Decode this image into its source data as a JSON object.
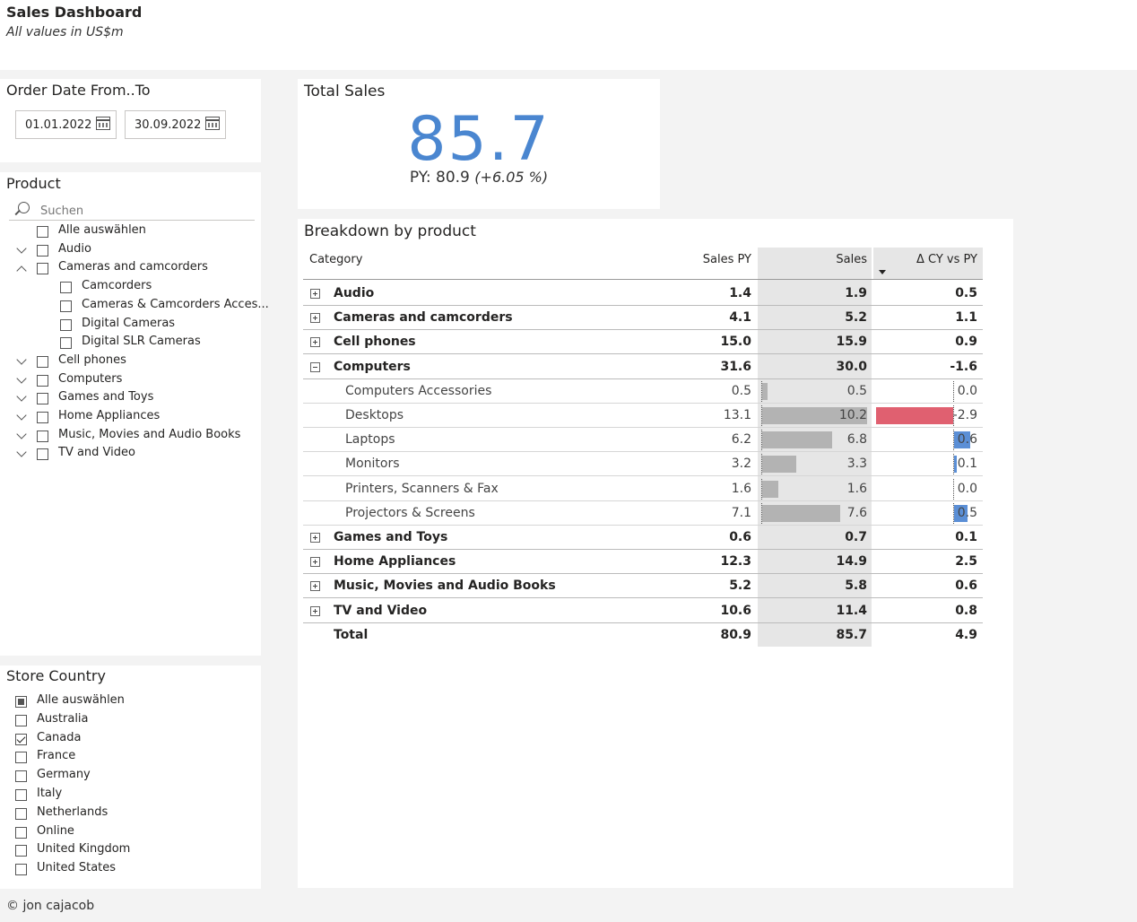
{
  "header": {
    "title": "Sales Dashboard",
    "subtitle": "All values in US$m"
  },
  "date_filter": {
    "title": "Order Date From..To",
    "from": "01.01.2022",
    "to": "30.09.2022"
  },
  "product_slicer": {
    "title": "Product",
    "search_placeholder": "Suchen",
    "items": [
      {
        "label": "Alle auswählen",
        "level": 0,
        "chevron": "none",
        "checked": false
      },
      {
        "label": "Audio",
        "level": 0,
        "chevron": "down",
        "checked": false
      },
      {
        "label": "Cameras and camcorders",
        "level": 0,
        "chevron": "up",
        "checked": false
      },
      {
        "label": "Camcorders",
        "level": 1,
        "chevron": "none",
        "checked": false
      },
      {
        "label": "Cameras & Camcorders Acces...",
        "level": 1,
        "chevron": "none",
        "checked": false
      },
      {
        "label": "Digital Cameras",
        "level": 1,
        "chevron": "none",
        "checked": false
      },
      {
        "label": "Digital SLR Cameras",
        "level": 1,
        "chevron": "none",
        "checked": false
      },
      {
        "label": "Cell phones",
        "level": 0,
        "chevron": "down",
        "checked": false
      },
      {
        "label": "Computers",
        "level": 0,
        "chevron": "down",
        "checked": false
      },
      {
        "label": "Games and Toys",
        "level": 0,
        "chevron": "down",
        "checked": false
      },
      {
        "label": "Home Appliances",
        "level": 0,
        "chevron": "down",
        "checked": false
      },
      {
        "label": "Music, Movies and Audio Books",
        "level": 0,
        "chevron": "down",
        "checked": false
      },
      {
        "label": "TV and Video",
        "level": 0,
        "chevron": "down",
        "checked": false
      }
    ]
  },
  "country_slicer": {
    "title": "Store Country",
    "items": [
      {
        "label": "Alle auswählen",
        "state": "partial"
      },
      {
        "label": "Australia",
        "state": "unchecked"
      },
      {
        "label": "Canada",
        "state": "checked"
      },
      {
        "label": "France",
        "state": "unchecked"
      },
      {
        "label": "Germany",
        "state": "unchecked"
      },
      {
        "label": "Italy",
        "state": "unchecked"
      },
      {
        "label": "Netherlands",
        "state": "unchecked"
      },
      {
        "label": "Online",
        "state": "unchecked"
      },
      {
        "label": "United Kingdom",
        "state": "unchecked"
      },
      {
        "label": "United States",
        "state": "unchecked"
      }
    ]
  },
  "kpi": {
    "title": "Total Sales",
    "value": "85.7",
    "py_label": "PY: 80.9",
    "py_change": "(+6.05 %)"
  },
  "breakdown": {
    "title": "Breakdown by product",
    "columns": {
      "category": "Category",
      "sales_py": "Sales PY",
      "sales": "Sales",
      "delta": "Δ CY vs PY"
    },
    "colors": {
      "negative": "#e06070",
      "positive": "#5b8fd6",
      "bar": "#b3b3b3",
      "sales_col_bg": "#e6e6e6"
    },
    "rows": [
      {
        "label": "Audio",
        "type": "group",
        "expanded": false,
        "py": "1.4",
        "sales": "1.9",
        "delta": "0.5"
      },
      {
        "label": "Cameras and camcorders",
        "type": "group",
        "expanded": false,
        "py": "4.1",
        "sales": "5.2",
        "delta": "1.1"
      },
      {
        "label": "Cell phones",
        "type": "group",
        "expanded": false,
        "py": "15.0",
        "sales": "15.9",
        "delta": "0.9"
      },
      {
        "label": "Computers",
        "type": "group",
        "expanded": true,
        "py": "31.6",
        "sales": "30.0",
        "delta": "-1.6"
      },
      {
        "label": "Computers Accessories",
        "type": "sub",
        "py": "0.5",
        "sales": "0.5",
        "delta": "0.0",
        "sales_v": 0.5,
        "delta_v": 0.0
      },
      {
        "label": "Desktops",
        "type": "sub",
        "py": "13.1",
        "sales": "10.2",
        "delta": "-2.9",
        "sales_v": 10.2,
        "delta_v": -2.9
      },
      {
        "label": "Laptops",
        "type": "sub",
        "py": "6.2",
        "sales": "6.8",
        "delta": "0.6",
        "sales_v": 6.8,
        "delta_v": 0.6
      },
      {
        "label": "Monitors",
        "type": "sub",
        "py": "3.2",
        "sales": "3.3",
        "delta": "0.1",
        "sales_v": 3.3,
        "delta_v": 0.1
      },
      {
        "label": "Printers, Scanners & Fax",
        "type": "sub",
        "py": "1.6",
        "sales": "1.6",
        "delta": "0.0",
        "sales_v": 1.6,
        "delta_v": 0.0
      },
      {
        "label": "Projectors & Screens",
        "type": "sub",
        "py": "7.1",
        "sales": "7.6",
        "delta": "0.5",
        "sales_v": 7.6,
        "delta_v": 0.5
      },
      {
        "label": "Games and Toys",
        "type": "group",
        "expanded": false,
        "py": "0.6",
        "sales": "0.7",
        "delta": "0.1"
      },
      {
        "label": "Home Appliances",
        "type": "group",
        "expanded": false,
        "py": "12.3",
        "sales": "14.9",
        "delta": "2.5"
      },
      {
        "label": "Music, Movies and Audio Books",
        "type": "group",
        "expanded": false,
        "py": "5.2",
        "sales": "5.8",
        "delta": "0.6"
      },
      {
        "label": "TV and Video",
        "type": "group",
        "expanded": false,
        "py": "10.6",
        "sales": "11.4",
        "delta": "0.8"
      },
      {
        "label": "Total",
        "type": "total",
        "py": "80.9",
        "sales": "85.7",
        "delta": "4.9"
      }
    ]
  },
  "footer": {
    "credit": "© jon cajacob"
  }
}
